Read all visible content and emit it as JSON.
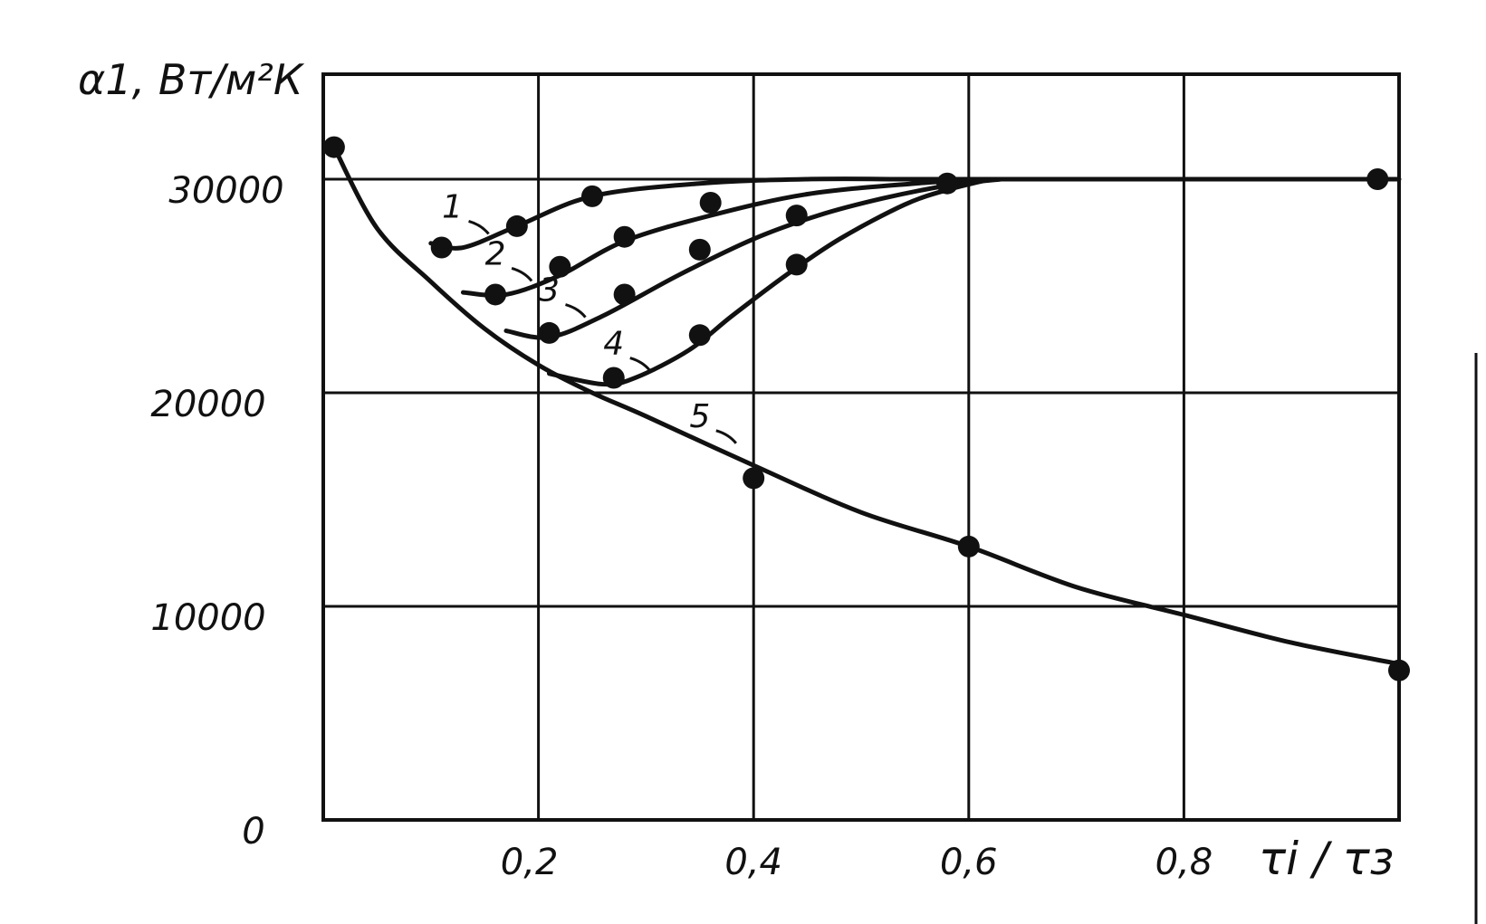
{
  "chart_data": {
    "type": "line",
    "title": "",
    "ylabel": "α1, Вт/м²К",
    "xlabel": "τi / τз",
    "xlim": [
      0,
      1.0
    ],
    "ylim": [
      0,
      35000
    ],
    "grid": true,
    "x_ticks": [
      "0,2",
      "0,4",
      "0,6",
      "0,8"
    ],
    "x_tick_values": [
      0.2,
      0.4,
      0.6,
      0.8
    ],
    "y_ticks": [
      "0",
      "10000",
      "20000",
      "30000"
    ],
    "y_tick_values": [
      0,
      10000,
      20000,
      30000
    ],
    "series": [
      {
        "name": "1",
        "x": [
          0.1,
          0.13,
          0.18,
          0.25,
          0.35,
          0.45,
          0.55,
          0.65,
          1.0
        ],
        "y": [
          27000,
          26800,
          27800,
          29200,
          29800,
          30000,
          30000,
          30000,
          30000
        ],
        "markers": [
          [
            0.11,
            26800
          ],
          [
            0.18,
            27800
          ],
          [
            0.25,
            29200
          ]
        ]
      },
      {
        "name": "2",
        "x": [
          0.13,
          0.17,
          0.22,
          0.28,
          0.36,
          0.45,
          0.55,
          0.62
        ],
        "y": [
          24700,
          24600,
          25500,
          27100,
          28300,
          29300,
          29800,
          30000
        ],
        "markers": [
          [
            0.16,
            24600
          ],
          [
            0.22,
            25900
          ],
          [
            0.28,
            27300
          ],
          [
            0.36,
            28900
          ]
        ]
      },
      {
        "name": "3",
        "x": [
          0.17,
          0.21,
          0.26,
          0.33,
          0.4,
          0.46,
          0.52,
          0.58,
          0.63
        ],
        "y": [
          22900,
          22600,
          23600,
          25500,
          27200,
          28300,
          29100,
          29700,
          30000
        ],
        "markers": [
          [
            0.21,
            22800
          ],
          [
            0.28,
            24600
          ],
          [
            0.35,
            26700
          ],
          [
            0.44,
            28300
          ]
        ]
      },
      {
        "name": "4",
        "x": [
          0.21,
          0.26,
          0.29,
          0.34,
          0.38,
          0.43,
          0.48,
          0.54,
          0.58,
          0.62
        ],
        "y": [
          20900,
          20400,
          20700,
          22000,
          23600,
          25500,
          27200,
          28800,
          29500,
          30000
        ],
        "markers": [
          [
            0.27,
            20700
          ],
          [
            0.35,
            22700
          ],
          [
            0.44,
            26000
          ],
          [
            0.58,
            29800
          ]
        ]
      },
      {
        "name": "5",
        "x": [
          0.01,
          0.05,
          0.1,
          0.15,
          0.2,
          0.25,
          0.3,
          0.4,
          0.5,
          0.6,
          0.7,
          0.8,
          0.9,
          1.0
        ],
        "y": [
          31500,
          27700,
          25200,
          23000,
          21300,
          20000,
          18900,
          16600,
          14400,
          12800,
          10900,
          9600,
          8300,
          7300
        ],
        "markers": [
          [
            0.01,
            31500
          ],
          [
            0.4,
            16000
          ],
          [
            0.6,
            12800
          ],
          [
            1.0,
            7000
          ],
          [
            0.98,
            30000
          ]
        ]
      }
    ],
    "curve_labels": [
      {
        "text": "1",
        "x": 0.12,
        "y": 28200
      },
      {
        "text": "2",
        "x": 0.16,
        "y": 26000
      },
      {
        "text": "3",
        "x": 0.21,
        "y": 24300
      },
      {
        "text": "4",
        "x": 0.27,
        "y": 21800
      },
      {
        "text": "5",
        "x": 0.35,
        "y": 18400
      }
    ]
  }
}
